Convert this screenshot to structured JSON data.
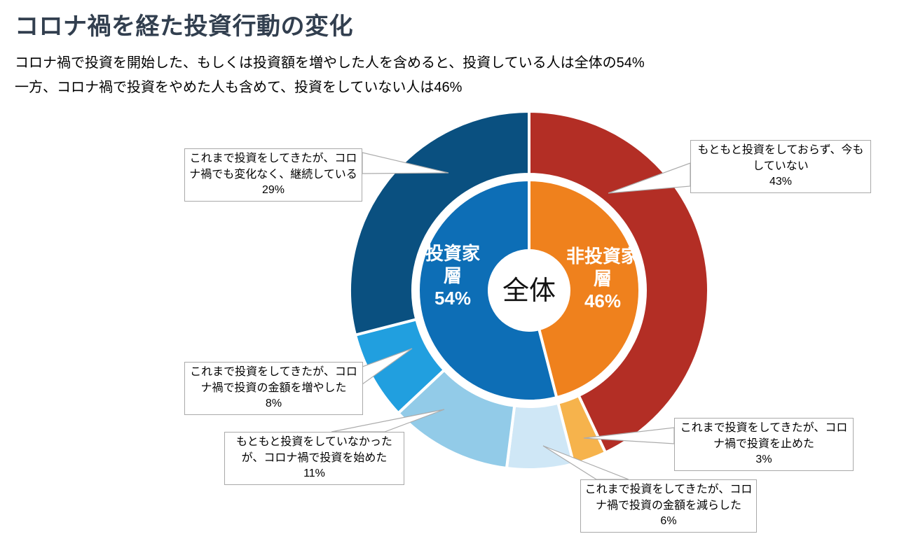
{
  "page": {
    "title": "コロナ禍を経た投資行動の変化",
    "title_color": "#323F4F",
    "subtitle_line1": "コロナ禍で投資を開始した、もしくは投資額を増やした人を含めると、投資している人は全体の54%",
    "subtitle_line2": "一方、コロナ禍で投資をやめた人も含めて、投資をしていない人は46%"
  },
  "chart_data": {
    "type": "pie",
    "variant": "double-ring-donut",
    "units": "%",
    "direction": "clockwise",
    "start_angle_deg": 0,
    "legend_position": "callouts",
    "center_label": "全体",
    "inner_ring": [
      {
        "label": "非投資家層",
        "label_lines": [
          "非投資家",
          "層"
        ],
        "value": 46,
        "value_label": "46%",
        "color": "#EF811D",
        "text_color": "#FFFFFF"
      },
      {
        "label": "投資家層",
        "label_lines": [
          "投資家",
          "層"
        ],
        "value": 54,
        "value_label": "54%",
        "color": "#0D6EB6",
        "text_color": "#FFFFFF"
      }
    ],
    "outer_ring": [
      {
        "label": "もともと投資をしておらず、今もしていない",
        "value": 43,
        "value_label": "43%",
        "color": "#B32E25"
      },
      {
        "label": "これまで投資をしてきたが、コロナ禍で投資を止めた",
        "value": 3,
        "value_label": "3%",
        "color": "#F6B34C"
      },
      {
        "label": "これまで投資をしてきたが、コロナ禍で投資の金額を減らした",
        "value": 6,
        "value_label": "6%",
        "color": "#CFE7F6"
      },
      {
        "label": "もともと投資をしていなかったが、コロナ禍で投資を始めた",
        "value": 11,
        "value_label": "11%",
        "color": "#92CBE8"
      },
      {
        "label": "これまで投資をしてきたが、コロナ禍で投資の金額を増やした",
        "value": 8,
        "value_label": "8%",
        "color": "#219FDF"
      },
      {
        "label": "これまで投資をしてきたが、コロナ禍でも変化なく、継続している",
        "value": 29,
        "value_label": "29%",
        "color": "#0A5080"
      }
    ]
  },
  "callouts": [
    {
      "text": "これまで投資をしてきたが、コロ\nナ禍でも変化なく、継続している\n29%"
    },
    {
      "text": "もともと投資をしておらず、今も\nしていない\n43%"
    },
    {
      "text": "これまで投資をしてきたが、コロ\nナ禍で投資の金額を増やした\n8%"
    },
    {
      "text": "もともと投資をしていなかった\nが、コロナ禍で投資を始めた\n11%"
    },
    {
      "text": "これまで投資をしてきたが、コロ\nナ禍で投資の金額を減らした\n6%"
    },
    {
      "text": "これまで投資をしてきたが、コロ\nナ禍で投資を止めた\n3%"
    }
  ]
}
